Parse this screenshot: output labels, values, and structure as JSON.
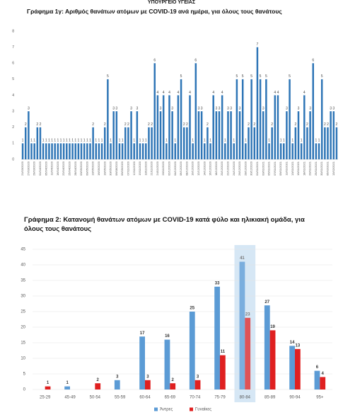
{
  "header": {
    "title": "ΥΠΟΥΡΓΕΙΟ ΥΓΕΙΑΣ"
  },
  "chart_data": [
    {
      "type": "bar",
      "title": "Γράφημα 1γ: Αριθμός θανάτων ατόμων με COVID-19 ανά ημέρα, για όλους τους θανάτους",
      "color": "#2e75b6",
      "ylim": [
        0,
        8
      ],
      "yticks": [
        0,
        1,
        2,
        3,
        4,
        5,
        6,
        7,
        8
      ],
      "grid": false,
      "categories": [
        "21/03/2020",
        null,
        "27/03/2020",
        null,
        "29/03/2020",
        null,
        "01/04/2020",
        null,
        "05/04/2020",
        null,
        "11/04/2020",
        null,
        "16/04/2020",
        null,
        "22/04/2020",
        null,
        "25/04/2020",
        null,
        "28/04/2020",
        null,
        "03/05/2020",
        null,
        "09/05/2020",
        null,
        "13/05/2020",
        null,
        "16/05/2020",
        null,
        "19/05/2020",
        null,
        "30/05/2020",
        null,
        "06/08/2020",
        null,
        "09/09/2020",
        null,
        "07/11/2020",
        null,
        "12/11/2020",
        null,
        "15/11/2020",
        null,
        "18/11/2020",
        null,
        "21/11/2020",
        null,
        "24/11/2020",
        null,
        "28/11/2020",
        null,
        "02/12/2020",
        null,
        "04/12/2020",
        null,
        "06/12/2020",
        null,
        "08/12/2020",
        null,
        "10/12/2020",
        null,
        "12/12/2020",
        null,
        "14/12/2020",
        null,
        "16/12/2020",
        null,
        "18/12/2020",
        null,
        "20/12/2020",
        null,
        "22/12/2020",
        null,
        "24/12/2020",
        null,
        "26/12/2020",
        null,
        "28/12/2020",
        null,
        "30/12/2020",
        null,
        "01/01/2021",
        null,
        "03/01/2021",
        null,
        "05/01/2021",
        null,
        "07/01/2021",
        null,
        "09/01/2021",
        null,
        "11/01/2021",
        null,
        "13/01/2021",
        null,
        "15/01/2021",
        null,
        "18/01/2021",
        null,
        "20/01/2021",
        null,
        "25/01/2021",
        null,
        "30/01/2021",
        null,
        "05/02/2021",
        null,
        "13/02/2021",
        null
      ],
      "values": [
        1,
        2,
        3,
        1,
        1,
        2,
        2,
        1,
        1,
        1,
        1,
        1,
        1,
        1,
        1,
        1,
        1,
        1,
        1,
        1,
        1,
        1,
        1,
        1,
        2,
        1,
        1,
        1,
        2,
        5,
        1,
        3,
        3,
        1,
        1,
        2,
        2,
        3,
        1,
        3,
        1,
        1,
        1,
        2,
        2,
        6,
        4,
        3,
        4,
        1,
        4,
        3,
        1,
        4,
        5,
        2,
        2,
        4,
        1,
        6,
        3,
        3,
        1,
        2,
        1,
        4,
        3,
        3,
        4,
        1,
        3,
        3,
        1,
        5,
        3,
        5,
        1,
        2,
        5,
        2,
        7,
        5,
        3,
        5,
        1,
        2,
        4,
        4,
        1,
        1,
        3,
        5,
        1,
        2,
        3,
        1,
        4,
        2,
        3,
        6,
        1,
        1,
        5,
        2,
        2,
        3,
        3,
        2
      ]
    },
    {
      "type": "grouped-bar",
      "title": "Γράφημα 2: Κατανομή θανάτων ατόμων με COVID-19 κατά φύλο και ηλικιακή ομάδα, για όλους τους θανάτους",
      "ylim": [
        0,
        45
      ],
      "yticks": [
        0,
        5,
        10,
        15,
        20,
        25,
        30,
        35,
        40,
        45
      ],
      "grid": true,
      "highlight_index": 8,
      "categories": [
        "25-29",
        "45-49",
        "50-54",
        "55-59",
        "60-64",
        "65-69",
        "70-74",
        "75-79",
        "80-84",
        "85-89",
        "90-94",
        "95+"
      ],
      "series": [
        {
          "name": "Άντρες",
          "color": "#5b9bd5",
          "values": [
            null,
            1,
            null,
            3,
            17,
            16,
            25,
            33,
            41,
            27,
            14,
            6
          ]
        },
        {
          "name": "Γυναίκες",
          "color": "#e02020",
          "values": [
            1,
            null,
            2,
            null,
            3,
            2,
            3,
            11,
            23,
            19,
            13,
            4
          ]
        }
      ]
    }
  ]
}
